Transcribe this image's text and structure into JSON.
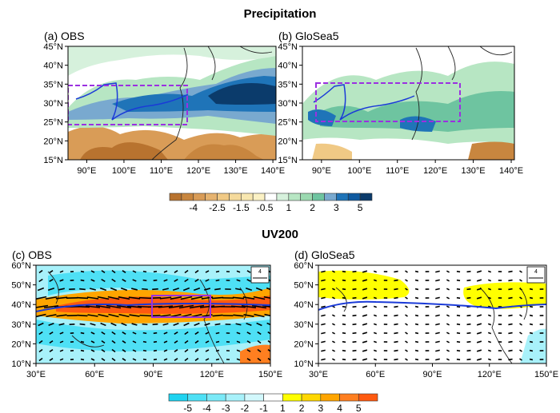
{
  "precip": {
    "title": "Precipitation",
    "panels": [
      {
        "label": "(a) OBS",
        "lat_ticks": [
          "15°N",
          "20°N",
          "25°N",
          "30°N",
          "35°N",
          "40°N",
          "45°N"
        ],
        "lon_ticks": [
          "90°E",
          "100°E",
          "110°E",
          "120°E",
          "130°E",
          "140°E"
        ]
      },
      {
        "label": "(b) GloSea5",
        "lat_ticks": [
          "15°N",
          "20°N",
          "25°N",
          "30°N",
          "35°N",
          "40°N",
          "45°N"
        ],
        "lon_ticks": [
          "90°E",
          "100°E",
          "110°E",
          "120°E",
          "130°E",
          "140°E"
        ]
      }
    ],
    "colorbar": {
      "labels": [
        "-4",
        "-2.5",
        "-1.5",
        "-0.5",
        "1",
        "2",
        "3",
        "5"
      ],
      "colors": [
        "#b8732f",
        "#c8863f",
        "#d99c57",
        "#e6b36f",
        "#f0c985",
        "#f5da9c",
        "#f8e7b0",
        "#fbf1c4",
        "#ffffff",
        "#d6f1dc",
        "#b7e6c3",
        "#9bd9b0",
        "#6ec4a0",
        "#79a9cf",
        "#1f74b8",
        "#0f5aa0",
        "#0b3b6b"
      ]
    }
  },
  "uv": {
    "title": "UV200",
    "panels": [
      {
        "label": "(c) OBS",
        "lat_ticks": [
          "10°N",
          "20°N",
          "30°N",
          "40°N",
          "50°N",
          "60°N"
        ],
        "lon_ticks": [
          "30°E",
          "60°E",
          "90°E",
          "120°E",
          "150°E"
        ],
        "ref_vector": "4"
      },
      {
        "label": "(d) GloSea5",
        "lat_ticks": [
          "10°N",
          "20°N",
          "30°N",
          "40°N",
          "50°N",
          "60°N"
        ],
        "lon_ticks": [
          "30°E",
          "60°E",
          "90°E",
          "120°E",
          "150°E"
        ],
        "ref_vector": "4"
      }
    ],
    "colorbar": {
      "labels": [
        "-5",
        "-4",
        "-3",
        "-2",
        "-1",
        "1",
        "2",
        "3",
        "4",
        "5"
      ],
      "colors": [
        "#1fd3f0",
        "#4ee0f5",
        "#7ae9f7",
        "#a8f1fa",
        "#d2f8fc",
        "#ffffff",
        "#ffff00",
        "#ffd700",
        "#ffa500",
        "#ff7f20",
        "#ff5a10"
      ]
    }
  },
  "colors": {
    "region_box": "#9b30e0",
    "jet_line": "#1a3ad8",
    "plateau_line": "#1a3ad8"
  }
}
